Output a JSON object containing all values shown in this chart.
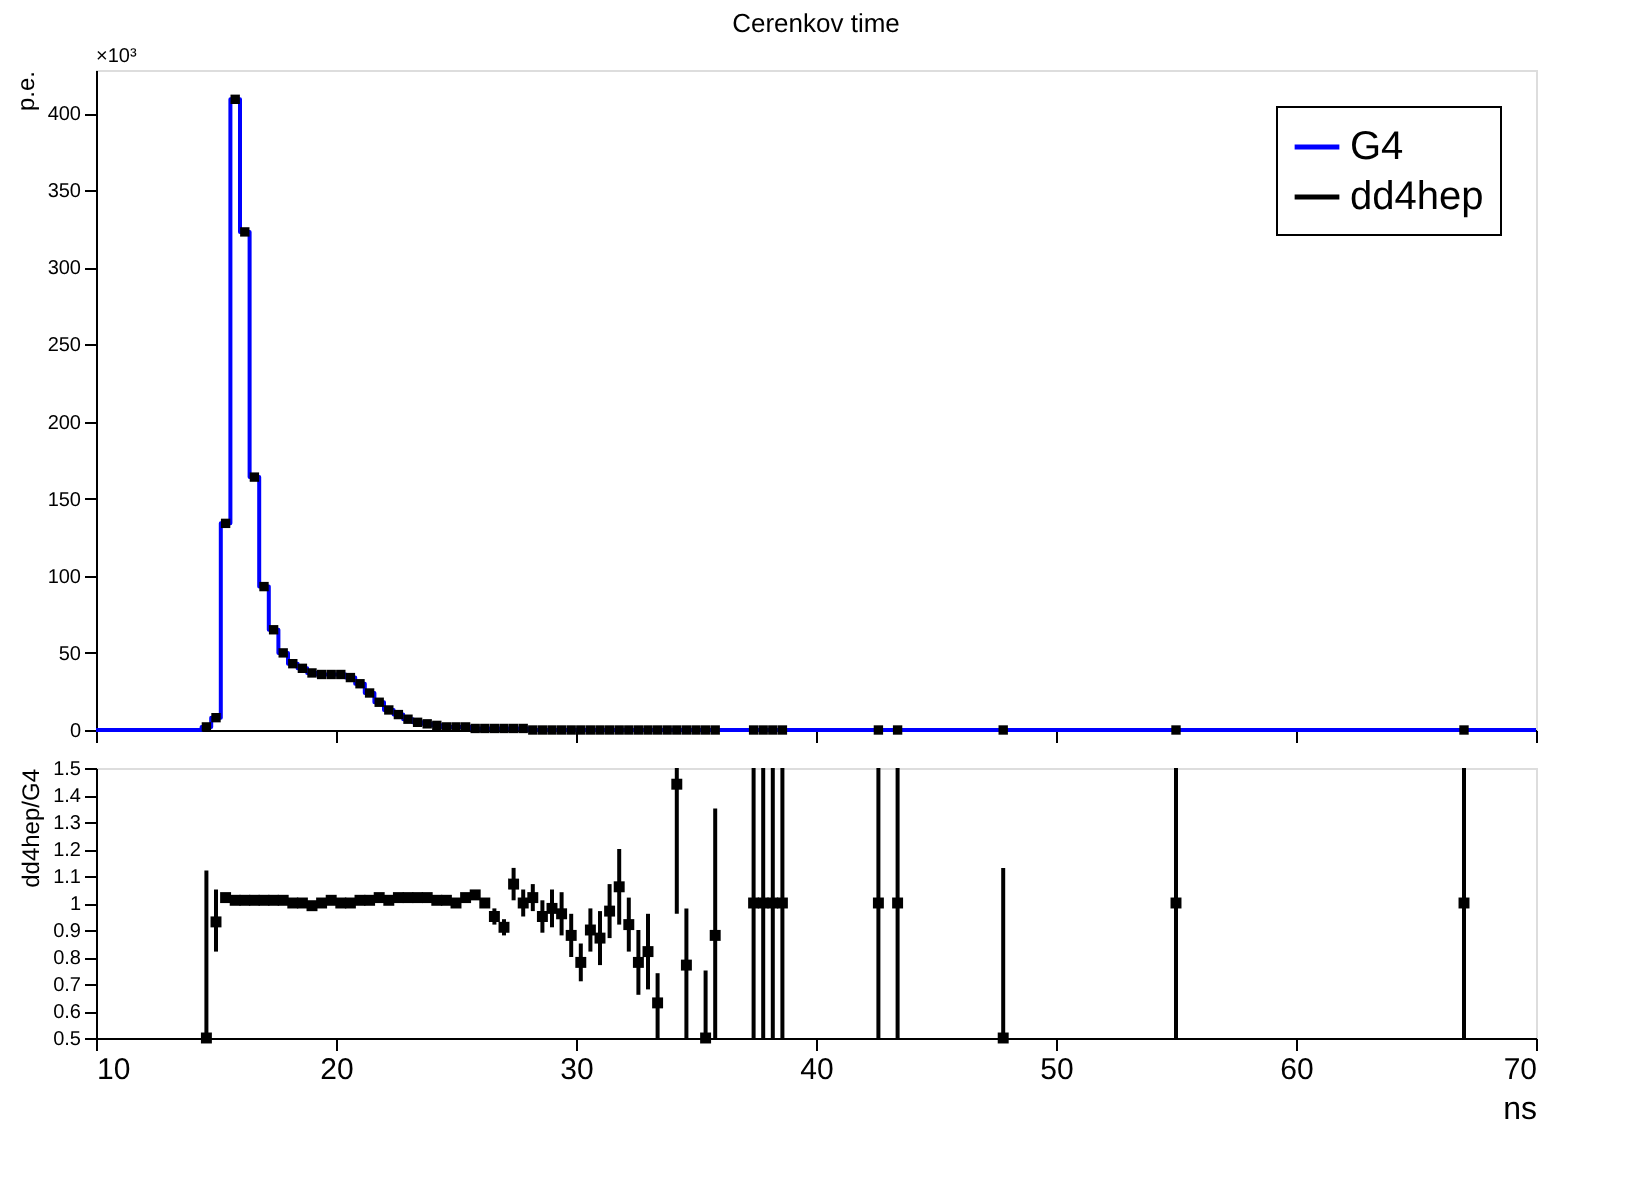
{
  "chart_data": [
    {
      "type": "histogram",
      "title": "Cerenkov time",
      "ylabel": "p.e.",
      "annotations": [
        "×10³"
      ],
      "bins": [
        10.0,
        10.4,
        10.8,
        11.2,
        11.6,
        12.0,
        12.4,
        12.8,
        13.2,
        13.6,
        14.0,
        14.4,
        14.8,
        15.2,
        15.6,
        16.0,
        16.4,
        16.8,
        17.2,
        17.6,
        18.0,
        18.4,
        18.8,
        19.2,
        19.6,
        20.0,
        20.4,
        20.8,
        21.2,
        21.6,
        22.0,
        22.4,
        22.8,
        23.2,
        23.6,
        24.0,
        24.4,
        24.8,
        25.2,
        25.6,
        26.0,
        26.4,
        26.8,
        27.2,
        27.6,
        28.0,
        28.4,
        28.8,
        29.2,
        29.6,
        30.0,
        30.4,
        30.8,
        31.2,
        31.6,
        32.0,
        32.4,
        32.8,
        33.2,
        33.6,
        34.0,
        34.4,
        34.8,
        35.2,
        35.6,
        36.0,
        36.4,
        36.8,
        37.2,
        37.6,
        38.0,
        38.4,
        38.8,
        39.2,
        39.6,
        40.0,
        40.4,
        40.8,
        41.2,
        41.6,
        42.0,
        42.4,
        42.8,
        43.2,
        43.6,
        44.0,
        44.4,
        44.8,
        45.2,
        45.6,
        46.0,
        46.4,
        46.8,
        47.2,
        47.6,
        48.0,
        48.4,
        48.8,
        49.2,
        49.6,
        50.0,
        50.4,
        50.8,
        51.2,
        51.6,
        52.0,
        52.4,
        52.8,
        53.2,
        53.6,
        54.0,
        54.4,
        54.8,
        55.2,
        55.6,
        56.0,
        56.4,
        56.8,
        57.2,
        57.6,
        58.0,
        58.4,
        58.8,
        59.2,
        59.6,
        60.0,
        60.4,
        60.8,
        61.2,
        61.6,
        62.0,
        62.4,
        62.8,
        63.2,
        63.6,
        64.0,
        64.4,
        64.8,
        65.2,
        65.6,
        66.0,
        66.4,
        66.8,
        67.2,
        67.6,
        68.0,
        68.4,
        68.8,
        69.2,
        69.6,
        70.0
      ],
      "series": [
        {
          "name": "G4",
          "color": "#0000ff",
          "values": [
            0,
            0,
            0,
            0,
            0,
            0,
            0,
            0,
            0,
            0,
            0,
            2,
            8,
            134,
            409,
            323,
            164,
            93,
            65,
            50,
            43,
            40,
            37,
            36,
            36,
            36,
            34,
            30,
            24,
            18,
            13,
            10,
            7,
            5,
            4,
            3,
            2,
            2,
            2,
            1,
            1,
            1,
            1,
            1,
            1,
            0,
            0,
            0,
            0,
            0,
            0,
            0,
            0,
            0,
            0,
            0,
            0,
            0,
            0,
            0,
            0,
            0,
            0,
            0,
            0,
            0,
            0,
            0,
            0,
            0,
            0,
            0,
            0,
            0,
            0,
            0,
            0,
            0,
            0,
            0,
            0,
            0,
            0,
            0,
            0,
            0,
            0,
            0,
            0,
            0,
            0,
            0,
            0,
            0,
            0,
            0,
            0,
            0,
            0,
            0,
            0,
            0,
            0,
            0,
            0,
            0,
            0,
            0,
            0,
            0,
            0,
            0,
            0,
            0,
            0,
            0,
            0,
            0,
            0,
            0,
            0,
            0,
            0,
            0,
            0,
            0,
            0,
            0,
            0,
            0,
            0,
            0,
            0,
            0,
            0,
            0,
            0,
            0,
            0,
            0,
            0,
            0,
            0,
            0,
            0,
            0,
            0,
            0,
            0,
            0
          ]
        },
        {
          "name": "dd4hep",
          "color": "#000000",
          "type": "scatter",
          "marker": "square",
          "x": [
            14.6,
            15.0,
            15.4,
            15.8,
            16.2,
            16.6,
            17.0,
            17.4,
            17.8,
            18.2,
            18.6,
            19.0,
            19.4,
            19.8,
            20.2,
            20.6,
            21.0,
            21.4,
            21.8,
            22.2,
            22.6,
            23.0,
            23.4,
            23.8,
            24.2,
            24.6,
            25.0,
            25.4,
            25.8,
            26.2,
            26.6,
            27.0,
            27.4,
            27.8,
            28.2,
            28.6,
            29.0,
            29.4,
            29.8,
            30.2,
            30.6,
            31.0,
            31.4,
            31.8,
            32.2,
            32.6,
            33.0,
            33.4,
            33.8,
            34.2,
            34.6,
            35.0,
            35.4,
            35.8,
            37.4,
            37.8,
            38.2,
            38.6,
            42.6,
            43.4,
            47.8,
            55.0,
            67.0
          ],
          "values": [
            2,
            8,
            134,
            409,
            323,
            164,
            93,
            65,
            50,
            43,
            40,
            37,
            36,
            36,
            36,
            34,
            30,
            24,
            18,
            13,
            10,
            7,
            5,
            4,
            3,
            2,
            2,
            2,
            1,
            1,
            1,
            1,
            1,
            1,
            0,
            0,
            0,
            0,
            0,
            0,
            0,
            0,
            0,
            0,
            0,
            0,
            0,
            0,
            0,
            0,
            0,
            0,
            0,
            0,
            0,
            0,
            0,
            0,
            0,
            0,
            0,
            0,
            0
          ]
        }
      ],
      "xlim": [
        10,
        70
      ],
      "xticks": [
        10,
        20,
        30,
        40,
        50,
        60,
        70
      ],
      "ylim": [
        0,
        428
      ],
      "yticks": [
        0,
        50,
        100,
        150,
        200,
        250,
        300,
        350,
        400
      ],
      "tick_labels": "y",
      "legend": "top right"
    },
    {
      "type": "scatter",
      "ylabel": "dd4hep/G4",
      "xlabel": "ns",
      "marker": "square",
      "color": "#000000",
      "x": [
        14.6,
        15.0,
        15.4,
        15.8,
        16.2,
        16.6,
        17.0,
        17.4,
        17.8,
        18.2,
        18.6,
        19.0,
        19.4,
        19.8,
        20.2,
        20.6,
        21.0,
        21.4,
        21.8,
        22.2,
        22.6,
        23.0,
        23.4,
        23.8,
        24.2,
        24.6,
        25.0,
        25.4,
        25.8,
        26.2,
        26.6,
        27.0,
        27.4,
        27.8,
        28.2,
        28.6,
        29.0,
        29.4,
        29.8,
        30.2,
        30.6,
        31.0,
        31.4,
        31.8,
        32.2,
        32.6,
        33.0,
        33.4,
        34.2,
        34.6,
        35.4,
        35.8,
        37.4,
        37.8,
        38.2,
        38.6,
        42.6,
        43.4,
        47.8,
        55.0,
        67.0
      ],
      "values": [
        0.5,
        0.93,
        1.02,
        1.01,
        1.01,
        1.01,
        1.01,
        1.01,
        1.01,
        1.0,
        1.0,
        0.99,
        1.0,
        1.01,
        1.0,
        1.0,
        1.01,
        1.01,
        1.02,
        1.01,
        1.02,
        1.02,
        1.02,
        1.02,
        1.01,
        1.01,
        1.0,
        1.02,
        1.03,
        1.0,
        0.95,
        0.91,
        1.07,
        1.0,
        1.02,
        0.95,
        0.98,
        0.96,
        0.88,
        0.78,
        0.9,
        0.87,
        0.97,
        1.06,
        0.92,
        0.78,
        0.82,
        0.63,
        1.44,
        0.77,
        0.5,
        0.88,
        1.0,
        1.0,
        1.0,
        1.0,
        1.0,
        1.0,
        0.5,
        1.0,
        1.0
      ],
      "errors": [
        [
          0.5,
          1.12
        ],
        [
          0.82,
          1.05
        ],
        null,
        null,
        null,
        null,
        null,
        null,
        null,
        null,
        null,
        null,
        null,
        null,
        null,
        null,
        null,
        null,
        null,
        null,
        null,
        null,
        null,
        null,
        null,
        null,
        null,
        null,
        null,
        null,
        0.03,
        0.03,
        0.06,
        0.05,
        0.05,
        0.06,
        0.07,
        0.08,
        0.08,
        0.07,
        0.08,
        0.1,
        0.1,
        0.14,
        0.1,
        0.12,
        0.14,
        [
          0.5,
          0.74
        ],
        [
          0.96,
          1.5
        ],
        [
          0.5,
          0.98
        ],
        [
          0.5,
          0.75
        ],
        [
          0.5,
          1.35
        ],
        [
          0.5,
          1.5
        ],
        [
          0.5,
          1.5
        ],
        [
          0.5,
          1.5
        ],
        [
          0.5,
          1.5
        ],
        [
          0.5,
          1.5
        ],
        [
          0.5,
          1.5
        ],
        [
          0.5,
          1.13
        ],
        [
          0.5,
          1.5
        ],
        [
          0.5,
          1.5
        ]
      ],
      "xlim": [
        10,
        70
      ],
      "xticks": [
        10,
        20,
        30,
        40,
        50,
        60,
        70
      ],
      "ylim": [
        0.5,
        1.5
      ],
      "yticks": [
        0.5,
        0.6,
        0.7,
        0.8,
        0.9,
        1.0,
        1.1,
        1.2,
        1.3,
        1.4,
        1.5
      ]
    }
  ]
}
